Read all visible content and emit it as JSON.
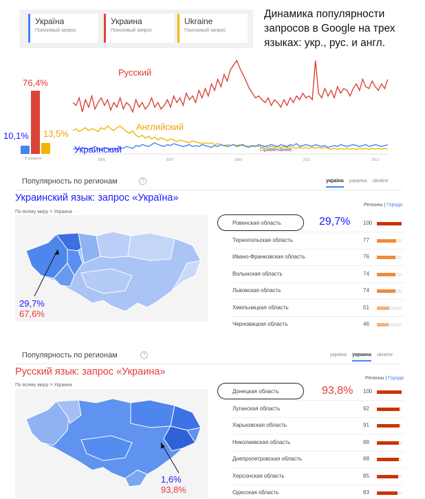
{
  "terms": [
    {
      "label": "Україна",
      "sub": "Поисковый запрос",
      "color": "#4285f4"
    },
    {
      "label": "Украина",
      "sub": "Поисковый запрос",
      "color": "#db4437"
    },
    {
      "label": "Ukraine",
      "sub": "Поисковый запрос",
      "color": "#f4b400"
    }
  ],
  "headline": "Динамика популярности запросов в Google на трех языках: укр., рус. и англ.",
  "chart_data": {
    "type": "line",
    "averages_label": "В среднем",
    "averages": [
      {
        "label": "10,1%",
        "value": 10.1,
        "color": "#4285f4"
      },
      {
        "label": "76,4%",
        "value": 76.4,
        "color": "#db4437"
      },
      {
        "label": "13,5%",
        "value": 13.5,
        "color": "#f4b400"
      }
    ],
    "x_ticks": [
      "2005",
      "2007",
      "2009",
      "2011",
      "2013"
    ],
    "series": [
      {
        "name": "Русский",
        "color": "#db4437",
        "values": [
          55,
          52,
          60,
          45,
          58,
          50,
          62,
          48,
          55,
          60,
          52,
          58,
          47,
          55,
          50,
          60,
          48,
          55,
          52,
          45,
          58,
          50,
          55,
          48,
          52,
          60,
          50,
          55,
          48,
          52,
          58,
          50,
          62,
          55,
          60,
          52,
          65,
          58,
          62,
          55,
          68,
          60,
          70,
          62,
          75,
          68,
          80,
          72,
          85,
          78,
          90,
          95,
          100,
          92,
          85,
          78,
          70,
          65,
          60,
          62,
          58,
          55,
          60,
          52,
          58,
          55,
          50,
          58,
          52,
          60,
          55,
          62,
          58,
          65,
          60,
          62,
          58,
          100,
          65,
          60,
          70,
          62,
          68,
          60,
          72,
          65,
          70,
          68,
          62,
          70,
          75,
          68,
          80,
          72,
          70,
          78,
          72,
          68,
          75,
          70,
          80
        ]
      },
      {
        "name": "Английский",
        "color": "#f4b400",
        "values": [
          25,
          27,
          24,
          26,
          28,
          25,
          27,
          26,
          24,
          28,
          26,
          30,
          27,
          25,
          28,
          30,
          27,
          24,
          22,
          25,
          20,
          18,
          20,
          17,
          19,
          16,
          18,
          15,
          17,
          16,
          14,
          16,
          15,
          13,
          15,
          14,
          13,
          12,
          14,
          13,
          12,
          11,
          12,
          11,
          12,
          10,
          11,
          10,
          9,
          10,
          9,
          10,
          9,
          10,
          9,
          8,
          9,
          8,
          9,
          8,
          9,
          8,
          7,
          8,
          7,
          8,
          7,
          8,
          7,
          8,
          7,
          6,
          7,
          6,
          7,
          6,
          7,
          6,
          7,
          6,
          7,
          6,
          5,
          6,
          5,
          6,
          5,
          6,
          5,
          6,
          5,
          6,
          5,
          6,
          5,
          6,
          5,
          6,
          5,
          6,
          5
        ]
      },
      {
        "name": "Украинский",
        "color": "#4285f4",
        "values": [
          5,
          6,
          5,
          7,
          6,
          5,
          6,
          8,
          6,
          5,
          7,
          6,
          5,
          6,
          5,
          7,
          6,
          8,
          7,
          6,
          9,
          8,
          10,
          9,
          8,
          10,
          12,
          10,
          9,
          8,
          10,
          9,
          11,
          10,
          9,
          8,
          9,
          10,
          8,
          9,
          8,
          10,
          9,
          8,
          7,
          9,
          8,
          10,
          9,
          8,
          9,
          10,
          8,
          9,
          10,
          8,
          7,
          9,
          8,
          10,
          9,
          8,
          9,
          10,
          9,
          8,
          10,
          9,
          8,
          10,
          9,
          11,
          8,
          9,
          10,
          9,
          8,
          10,
          9,
          8,
          9,
          7,
          8,
          9,
          8,
          10,
          9,
          8,
          9,
          10,
          9,
          8,
          9,
          10,
          8,
          9,
          10,
          9,
          8,
          9,
          10
        ]
      }
    ],
    "annotation": "Примечание"
  },
  "sections": [
    {
      "title": "Популярность по регионам",
      "help": "?",
      "tabs": [
        "україна",
        "украина",
        "ukraine"
      ],
      "active_tab": 0,
      "lang_title": "Украинский язык: запрос «Україна»",
      "lang_color": "#1a1aff",
      "crumb": "По всему миру > Украина",
      "regions_label": "Регионы",
      "sep": "|",
      "cities_label": "Города",
      "highlight_pct": "29,7%",
      "highlight_color": "#1a1aff",
      "map_note_1": "29,7%",
      "map_note_1_color": "#1a1aff",
      "map_note_2": "67,6%",
      "map_note_2_color": "#e53935",
      "rows": [
        {
          "name": "Ровенская область",
          "value": 100
        },
        {
          "name": "Тернопольская область",
          "value": 77
        },
        {
          "name": "Ивано-Франковская область",
          "value": 76
        },
        {
          "name": "Волынская область",
          "value": 74
        },
        {
          "name": "Львовская область",
          "value": 74
        },
        {
          "name": "Хмельницкая область",
          "value": 51
        },
        {
          "name": "Черновицкая область",
          "value": 46
        }
      ]
    },
    {
      "title": "Популярность по регионам",
      "help": "?",
      "tabs": [
        "україна",
        "украина",
        "ukraine"
      ],
      "active_tab": 1,
      "lang_title": "Русский язык: запрос «Украина»",
      "lang_color": "#e53935",
      "crumb": "По всему миру > Украина",
      "regions_label": "Регионы",
      "sep": "|",
      "cities_label": "Города",
      "highlight_pct": "93,8%",
      "highlight_color": "#e53935",
      "map_note_1": "1,6%",
      "map_note_1_color": "#1a1aff",
      "map_note_2": "93,8%",
      "map_note_2_color": "#e53935",
      "rows": [
        {
          "name": "Донецкая область",
          "value": 100
        },
        {
          "name": "Луганская область",
          "value": 92
        },
        {
          "name": "Харьковская область",
          "value": 91
        },
        {
          "name": "Николаевская область",
          "value": 88
        },
        {
          "name": "Днепропетровская область",
          "value": 88
        },
        {
          "name": "Херсонская область",
          "value": 85
        },
        {
          "name": "Одесская область",
          "value": 83
        }
      ]
    }
  ]
}
